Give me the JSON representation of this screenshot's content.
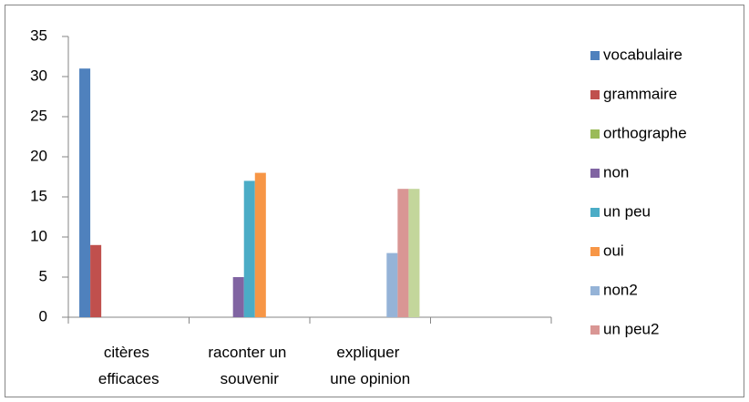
{
  "chart_data": {
    "type": "bar",
    "categories": [
      "citères efficaces",
      "raconter un souvenir",
      "expliquer une opinion",
      null
    ],
    "series": [
      {
        "name": "vocabulaire",
        "color": "#4f81bd",
        "values": [
          31,
          null,
          null,
          null
        ]
      },
      {
        "name": "grammaire",
        "color": "#c0504d",
        "values": [
          9,
          null,
          null,
          null
        ]
      },
      {
        "name": "orthographe",
        "color": "#9bbb59",
        "values": [
          null,
          null,
          null,
          null
        ]
      },
      {
        "name": "non",
        "color": "#8064a2",
        "values": [
          null,
          5,
          null,
          null
        ]
      },
      {
        "name": "un peu",
        "color": "#4bacc6",
        "values": [
          null,
          17,
          null,
          null
        ]
      },
      {
        "name": "oui",
        "color": "#f79646",
        "values": [
          null,
          18,
          null,
          null
        ]
      },
      {
        "name": "non2",
        "color": "#95b3d7",
        "values": [
          null,
          null,
          8,
          null
        ]
      },
      {
        "name": "un peu2",
        "color": "#d99694",
        "values": [
          null,
          null,
          16,
          null
        ]
      },
      {
        "color": "#c3d69b",
        "values": [
          null,
          null,
          16,
          null
        ]
      }
    ],
    "ylim": [
      0,
      35
    ],
    "yticks": [
      0,
      5,
      10,
      15,
      20,
      25,
      30,
      35
    ],
    "grid": false,
    "legend": "right"
  }
}
